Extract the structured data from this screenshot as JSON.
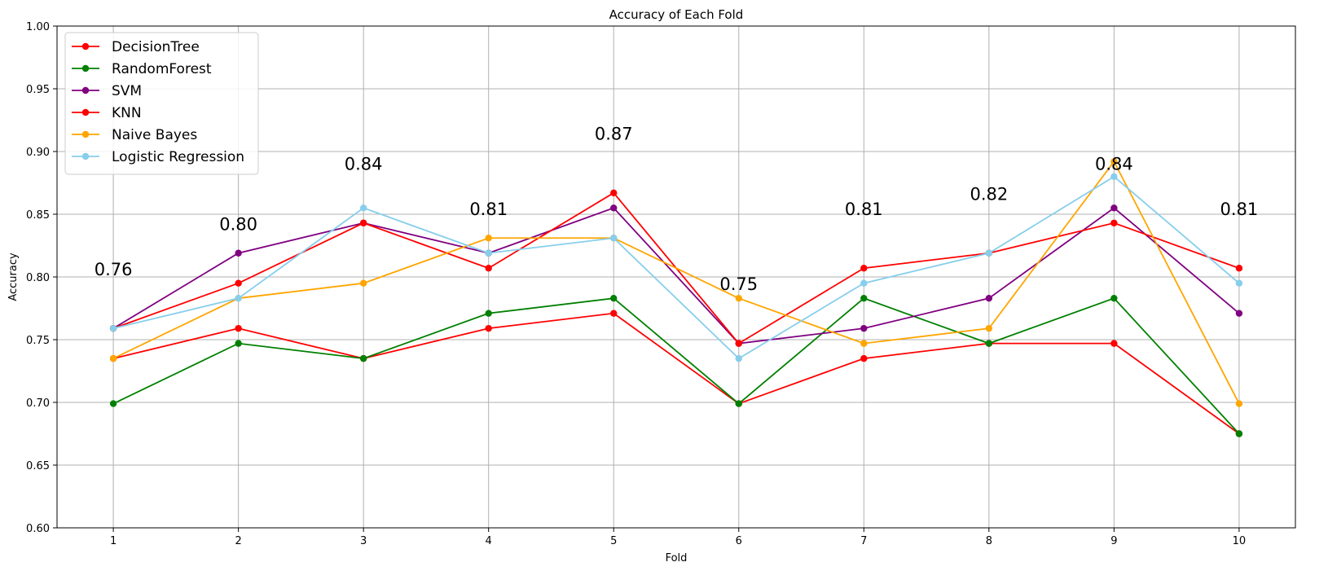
{
  "chart_data": {
    "type": "line",
    "title": "Accuracy of Each Fold",
    "xlabel": "Fold",
    "ylabel": "Accuracy",
    "x": [
      1,
      2,
      3,
      4,
      5,
      6,
      7,
      8,
      9,
      10
    ],
    "xlim": [
      0.55,
      10.45
    ],
    "ylim": [
      0.6,
      1.0
    ],
    "yticks": [
      "0.60",
      "0.65",
      "0.70",
      "0.75",
      "0.80",
      "0.85",
      "0.90",
      "0.95",
      "1.00"
    ],
    "grid": true,
    "legend_position": "upper-left",
    "series": [
      {
        "name": "DecisionTree",
        "color": "#ff0000",
        "values": [
          0.735,
          0.759,
          0.735,
          0.759,
          0.771,
          0.699,
          0.735,
          0.747,
          0.747,
          0.675
        ]
      },
      {
        "name": "RandomForest",
        "color": "#008000",
        "values": [
          0.699,
          0.747,
          0.735,
          0.771,
          0.783,
          0.699,
          0.783,
          0.747,
          0.783,
          0.675
        ]
      },
      {
        "name": "SVM",
        "color": "#800080",
        "values": [
          0.759,
          0.819,
          0.843,
          0.819,
          0.855,
          0.747,
          0.759,
          0.783,
          0.855,
          0.771
        ]
      },
      {
        "name": "KNN",
        "color": "#ff0000",
        "values": [
          0.759,
          0.795,
          0.843,
          0.807,
          0.867,
          0.747,
          0.807,
          0.819,
          0.843,
          0.807
        ]
      },
      {
        "name": "Naive Bayes",
        "color": "#ffa500",
        "values": [
          0.735,
          0.783,
          0.795,
          0.831,
          0.831,
          0.783,
          0.747,
          0.759,
          0.892,
          0.699
        ]
      },
      {
        "name": "Logistic Regression",
        "color": "#87ceeb",
        "values": [
          0.759,
          0.783,
          0.855,
          0.819,
          0.831,
          0.735,
          0.795,
          0.819,
          0.88,
          0.795
        ]
      }
    ],
    "annotations": [
      {
        "x": 1,
        "y": 0.806,
        "text": "0.76"
      },
      {
        "x": 2,
        "y": 0.842,
        "text": "0.80"
      },
      {
        "x": 3,
        "y": 0.89,
        "text": "0.84"
      },
      {
        "x": 4,
        "y": 0.854,
        "text": "0.81"
      },
      {
        "x": 5,
        "y": 0.914,
        "text": "0.87"
      },
      {
        "x": 6,
        "y": 0.794,
        "text": "0.75"
      },
      {
        "x": 7,
        "y": 0.854,
        "text": "0.81"
      },
      {
        "x": 8,
        "y": 0.866,
        "text": "0.82"
      },
      {
        "x": 9,
        "y": 0.89,
        "text": "0.84"
      },
      {
        "x": 10,
        "y": 0.854,
        "text": "0.81"
      }
    ]
  }
}
